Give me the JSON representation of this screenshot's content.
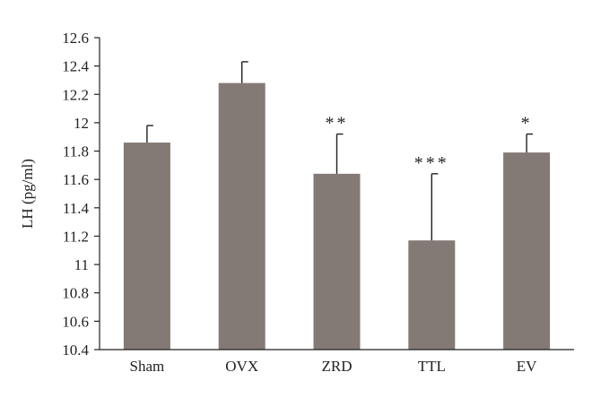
{
  "chart_data": {
    "type": "bar",
    "title": "",
    "xlabel": "",
    "ylabel": "LH (pg/ml)",
    "categories": [
      "Sham",
      "OVX",
      "ZRD",
      "TTL",
      "EV"
    ],
    "values": [
      11.86,
      12.28,
      11.64,
      11.17,
      11.79
    ],
    "error_bars": [
      0.12,
      0.15,
      0.28,
      0.47,
      0.13
    ],
    "significance": [
      "",
      "",
      "**",
      "***",
      "*"
    ],
    "ylim": [
      10.4,
      12.6
    ],
    "yticks": [
      "10.4",
      "10.6",
      "10.8",
      "11",
      "11.2",
      "11.4",
      "11.6",
      "11.8",
      "12",
      "12.2",
      "12.4",
      "12.6"
    ],
    "grid": false,
    "legend": "none",
    "bar_color": "#847a75",
    "axis_color": "#222222"
  }
}
